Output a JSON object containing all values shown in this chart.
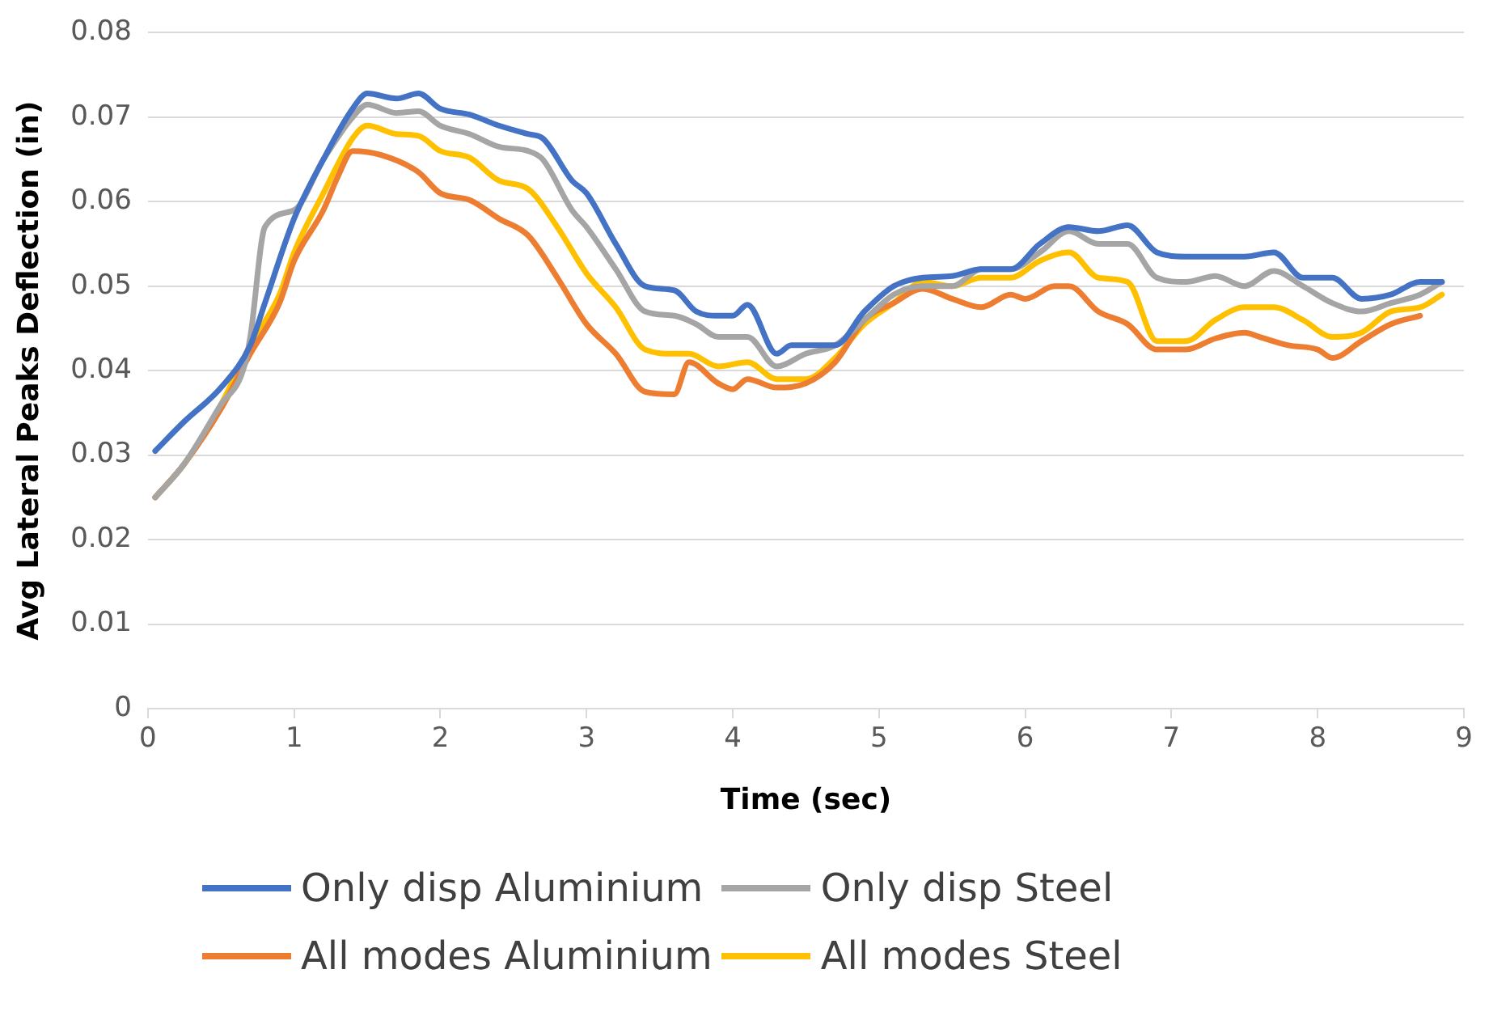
{
  "chart_data": {
    "type": "line",
    "xlabel": "Time (sec)",
    "ylabel": "Avg Lateral Peaks Deflection (in)",
    "xlim": [
      0,
      9
    ],
    "xticks": [
      0,
      1,
      2,
      3,
      4,
      5,
      6,
      7,
      8,
      9
    ],
    "ylim": [
      0,
      0.08
    ],
    "yticks": [
      0,
      0.01,
      0.02,
      0.03,
      0.04,
      0.05,
      0.06,
      0.07,
      0.08
    ],
    "grid": "y",
    "legend": "bottom",
    "marker": "none",
    "line_style": "solid",
    "series": [
      {
        "name": "Only disp Aluminium",
        "color": "#4472c4",
        "x": [
          0.05,
          0.25,
          0.5,
          0.7,
          0.8,
          1.0,
          1.2,
          1.4,
          1.5,
          1.7,
          1.85,
          2.0,
          2.2,
          2.4,
          2.6,
          2.7,
          2.9,
          3.0,
          3.2,
          3.4,
          3.6,
          3.75,
          3.9,
          4.0,
          4.1,
          4.3,
          4.4,
          4.5,
          4.7,
          4.9,
          5.1,
          5.3,
          5.5,
          5.7,
          5.9,
          6.1,
          6.3,
          6.5,
          6.7,
          6.9,
          7.1,
          7.3,
          7.5,
          7.7,
          7.9,
          8.1,
          8.3,
          8.5,
          8.7,
          8.85
        ],
        "values": [
          0.0305,
          0.034,
          0.038,
          0.043,
          0.048,
          0.058,
          0.065,
          0.071,
          0.0728,
          0.0722,
          0.0728,
          0.071,
          0.0703,
          0.069,
          0.068,
          0.0675,
          0.0625,
          0.061,
          0.055,
          0.05,
          0.0495,
          0.047,
          0.0465,
          0.0465,
          0.0478,
          0.042,
          0.043,
          0.043,
          0.043,
          0.047,
          0.05,
          0.051,
          0.0512,
          0.052,
          0.052,
          0.055,
          0.057,
          0.0565,
          0.0572,
          0.054,
          0.0535,
          0.0535,
          0.0535,
          0.054,
          0.051,
          0.051,
          0.0485,
          0.049,
          0.0505,
          0.0505
        ]
      },
      {
        "name": "Only disp Steel",
        "color": "#a5a5a5",
        "x": [
          0.05,
          0.25,
          0.5,
          0.65,
          0.7,
          0.8,
          1.0,
          1.2,
          1.4,
          1.5,
          1.7,
          1.85,
          2.0,
          2.2,
          2.4,
          2.6,
          2.7,
          2.9,
          3.0,
          3.2,
          3.4,
          3.6,
          3.75,
          3.9,
          4.1,
          4.3,
          4.5,
          4.7,
          4.9,
          5.1,
          5.3,
          5.5,
          5.7,
          5.9,
          6.1,
          6.3,
          6.5,
          6.7,
          6.9,
          7.1,
          7.3,
          7.5,
          7.7,
          7.9,
          8.1,
          8.3,
          8.5,
          8.7,
          8.85
        ],
        "values": [
          0.025,
          0.029,
          0.036,
          0.04,
          0.044,
          0.057,
          0.059,
          0.065,
          0.07,
          0.0715,
          0.0705,
          0.0707,
          0.069,
          0.068,
          0.0665,
          0.066,
          0.065,
          0.059,
          0.057,
          0.052,
          0.047,
          0.0465,
          0.0455,
          0.044,
          0.044,
          0.0405,
          0.042,
          0.043,
          0.046,
          0.049,
          0.05,
          0.05,
          0.052,
          0.052,
          0.054,
          0.0565,
          0.055,
          0.055,
          0.051,
          0.0505,
          0.0512,
          0.05,
          0.0518,
          0.05,
          0.048,
          0.047,
          0.048,
          0.049,
          0.0505
        ]
      },
      {
        "name": "All modes Aluminium",
        "color": "#ed7d31",
        "x": [
          0.05,
          0.25,
          0.5,
          0.7,
          0.9,
          1.0,
          1.2,
          1.3,
          1.4,
          1.6,
          1.85,
          2.0,
          2.2,
          2.4,
          2.6,
          2.8,
          3.0,
          3.2,
          3.4,
          3.6,
          3.7,
          3.9,
          4.0,
          4.1,
          4.3,
          4.5,
          4.7,
          4.9,
          5.1,
          5.3,
          5.5,
          5.7,
          5.9,
          6.0,
          6.2,
          6.3,
          6.5,
          6.7,
          6.9,
          7.1,
          7.3,
          7.5,
          7.6,
          7.8,
          8.0,
          8.1,
          8.3,
          8.5,
          8.7
        ],
        "values": [
          0.025,
          0.029,
          0.0355,
          0.042,
          0.048,
          0.053,
          0.059,
          0.063,
          0.066,
          0.0655,
          0.0635,
          0.061,
          0.0602,
          0.058,
          0.056,
          0.051,
          0.0455,
          0.042,
          0.0375,
          0.0372,
          0.041,
          0.0385,
          0.0378,
          0.039,
          0.038,
          0.0385,
          0.041,
          0.046,
          0.048,
          0.0497,
          0.0485,
          0.0475,
          0.049,
          0.0485,
          0.05,
          0.05,
          0.047,
          0.0455,
          0.0425,
          0.0425,
          0.0438,
          0.0445,
          0.044,
          0.043,
          0.0425,
          0.0415,
          0.0435,
          0.0455,
          0.0465
        ]
      },
      {
        "name": "All modes Steel",
        "color": "#ffc000",
        "x": [
          0.05,
          0.25,
          0.5,
          0.7,
          0.9,
          1.0,
          1.2,
          1.4,
          1.5,
          1.7,
          1.85,
          2.0,
          2.2,
          2.4,
          2.6,
          2.8,
          3.0,
          3.2,
          3.4,
          3.6,
          3.7,
          3.9,
          4.1,
          4.3,
          4.5,
          4.7,
          4.9,
          5.1,
          5.3,
          5.5,
          5.7,
          5.9,
          6.1,
          6.3,
          6.5,
          6.7,
          6.9,
          7.1,
          7.3,
          7.5,
          7.7,
          7.9,
          8.1,
          8.3,
          8.5,
          8.7,
          8.85
        ],
        "values": [
          0.025,
          0.029,
          0.036,
          0.043,
          0.049,
          0.054,
          0.061,
          0.0675,
          0.069,
          0.068,
          0.0678,
          0.066,
          0.0652,
          0.0625,
          0.0615,
          0.057,
          0.0515,
          0.0475,
          0.0425,
          0.042,
          0.042,
          0.0405,
          0.041,
          0.039,
          0.039,
          0.0415,
          0.0455,
          0.048,
          0.0505,
          0.05,
          0.051,
          0.051,
          0.053,
          0.054,
          0.051,
          0.0505,
          0.0435,
          0.0435,
          0.046,
          0.0475,
          0.0475,
          0.046,
          0.044,
          0.0445,
          0.047,
          0.0475,
          0.049
        ]
      }
    ]
  }
}
